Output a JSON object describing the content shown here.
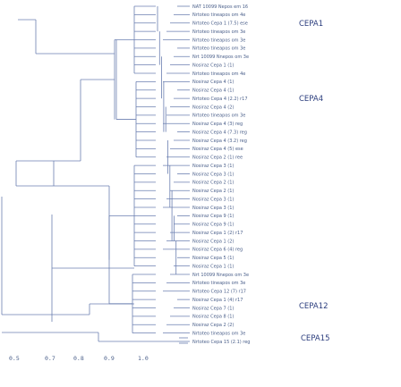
{
  "colors": {
    "branch": "#6b7fb0",
    "text": "#4a5f8a",
    "label": "#2b3d7d"
  },
  "clade_labels": [
    "CEPA1",
    "CEPA4",
    "CEPA12",
    "CEPA15"
  ],
  "axis": {
    "ticks": [
      "0.5",
      "0.7",
      "0.8",
      "0.9",
      "1.0"
    ]
  },
  "leaves": [
    "NAT 10099 Nepos em 16",
    "Nrtoteo tineapos om 4e",
    "Nrtoteo Cepa 1 (7.5) ese",
    "Nrtoteo tineapos om 3e",
    "Nrtoteo tineapos om 3e",
    "Nrtoteo tineapos om 3e",
    "Nrt 10099 Nnepos om 3e",
    "Nosiraz Cepa 1 (1)",
    "Nrtoteo tineapos om 4e",
    "Nosiraz Cepa 4 (1)",
    "Nosiraz Cepa 4 (1)",
    "Nrtoteo Cepa 4 (2.2) r17",
    "Nosiraz Cepa 4 (2)",
    "Nrtoteo tineapos om 3e",
    "Nosiraz Cepa 4 (3) reg",
    "Nosiraz Cepa 4 (7.3) reg",
    "Nosiraz Cepa 4 (3.2) reg",
    "Nosiraz Cepa 4 (5) ese",
    "Nosiraz Cepa 2 (1) ree",
    "Nosiraz Cepa 3 (1)",
    "Nosiraz Cepa 3 (1)",
    "Nosiraz Cepa 2 (1)",
    "Nosiraz Cepa 2 (1)",
    "Nosiraz Cepa 3 (1)",
    "Nosiraz Cepa 3 (1)",
    "Nosiraz Cepa 9 (1)",
    "Nosiraz Cepa 9 (1)",
    "Nosiraz Cepa 1 (2) r17",
    "Nosiraz Cepa 1 (2)",
    "Nosiraz Cepa 6 (4) reg",
    "Nosiraz Cepa 5 (1)",
    "Nosiraz Cepa 1 (1)",
    "Nrt 10099 Nnepos om 3e",
    "Nrtoteo tineapos om 3e",
    "Nrtoteo Cepa 12 (7) r17",
    "Nosiraz Cepa 1 (4) r17",
    "Nosiraz Cepa 7 (1)",
    "Nosiraz Cepa 8 (1)",
    "Nosiraz Cepa 2 (2)",
    "Nrtoteo tineapos om 3e",
    "Nrtoteo Cepa 15 (2.1) reg"
  ]
}
